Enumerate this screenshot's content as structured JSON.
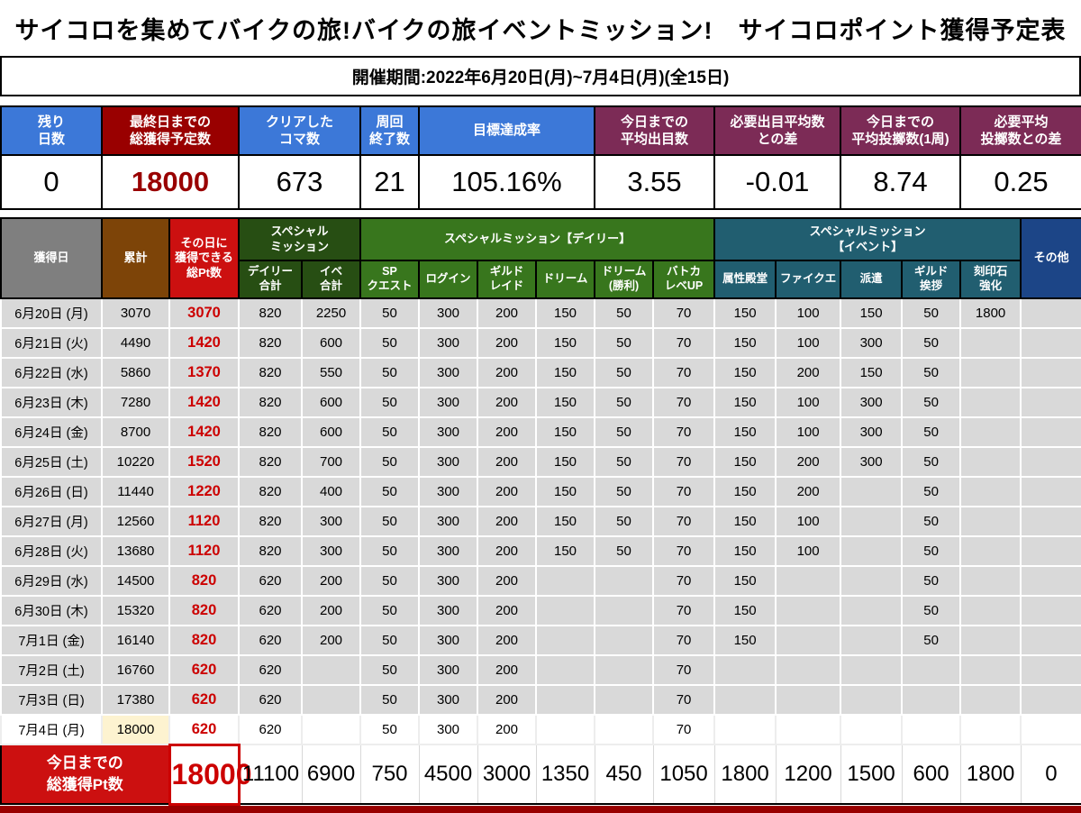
{
  "title": "サイコロを集めてバイクの旅!バイクの旅イベントミッション!　サイコロポイント獲得予定表",
  "period": "開催期間:2022年6月20日(月)~7月4日(月)(全15日)",
  "colors": {
    "stat_blue": "#3c78d8",
    "stat_dark_red": "#990000",
    "stat_maroon": "#7c2b56",
    "col_gray": "#7f7f7f",
    "col_brown": "#7d4408",
    "col_red": "#cc1010",
    "dark_green": "#274e13",
    "green": "#38761d",
    "teal": "#215e70",
    "navy": "#1c4587",
    "row_gray": "#d9d9d9",
    "highlight_cream": "#fdf3d0",
    "value_red": "#cc0000"
  },
  "stats": {
    "items": [
      {
        "label": "残り\n日数",
        "value": "0"
      },
      {
        "label": "最終日までの\n総獲得予定数",
        "value": "18000"
      },
      {
        "label": "クリアした\nコマ数",
        "value": "673"
      },
      {
        "label": "周回\n終了数",
        "value": "21"
      },
      {
        "label": "目標達成率",
        "value": "105.16%"
      },
      {
        "label": "今日までの\n平均出目数",
        "value": "3.55"
      },
      {
        "label": "必要出目平均数\nとの差",
        "value": "-0.01"
      },
      {
        "label": "今日までの\n平均投擲数(1周)",
        "value": "8.74"
      },
      {
        "label": "必要平均\n投擲数との差",
        "value": "0.25"
      }
    ]
  },
  "table": {
    "header": {
      "col_date": "獲得日",
      "col_cumulative": "累計",
      "col_day_total": "その日に\n獲得できる\n総Pt数",
      "group_special": "スペシャル\nミッション",
      "col_daily_sum": "デイリー\n合計",
      "col_event_sum": "イベ\n合計",
      "group_daily": "スペシャルミッション【デイリー】",
      "daily_cols": [
        "SP\nクエスト",
        "ログイン",
        "ギルド\nレイド",
        "ドリーム",
        "ドリーム\n(勝利)",
        "バトカ\nレベUP"
      ],
      "group_event": "スペシャルミッション\n【イベント】",
      "event_cols": [
        "属性殿堂",
        "ファイクエ",
        "派遣",
        "ギルド\n挨拶",
        "刻印石\n強化"
      ],
      "col_other": "その他"
    },
    "rows": [
      {
        "date": "6月20日 (月)",
        "cumulative": "3070",
        "day_total": "3070",
        "values": [
          "820",
          "2250",
          "50",
          "300",
          "200",
          "150",
          "50",
          "70",
          "150",
          "100",
          "150",
          "50",
          "1800",
          ""
        ]
      },
      {
        "date": "6月21日 (火)",
        "cumulative": "4490",
        "day_total": "1420",
        "values": [
          "820",
          "600",
          "50",
          "300",
          "200",
          "150",
          "50",
          "70",
          "150",
          "100",
          "300",
          "50",
          "",
          ""
        ]
      },
      {
        "date": "6月22日 (水)",
        "cumulative": "5860",
        "day_total": "1370",
        "values": [
          "820",
          "550",
          "50",
          "300",
          "200",
          "150",
          "50",
          "70",
          "150",
          "200",
          "150",
          "50",
          "",
          ""
        ]
      },
      {
        "date": "6月23日 (木)",
        "cumulative": "7280",
        "day_total": "1420",
        "values": [
          "820",
          "600",
          "50",
          "300",
          "200",
          "150",
          "50",
          "70",
          "150",
          "100",
          "300",
          "50",
          "",
          ""
        ]
      },
      {
        "date": "6月24日 (金)",
        "cumulative": "8700",
        "day_total": "1420",
        "values": [
          "820",
          "600",
          "50",
          "300",
          "200",
          "150",
          "50",
          "70",
          "150",
          "100",
          "300",
          "50",
          "",
          ""
        ]
      },
      {
        "date": "6月25日 (土)",
        "cumulative": "10220",
        "day_total": "1520",
        "values": [
          "820",
          "700",
          "50",
          "300",
          "200",
          "150",
          "50",
          "70",
          "150",
          "200",
          "300",
          "50",
          "",
          ""
        ]
      },
      {
        "date": "6月26日 (日)",
        "cumulative": "11440",
        "day_total": "1220",
        "values": [
          "820",
          "400",
          "50",
          "300",
          "200",
          "150",
          "50",
          "70",
          "150",
          "200",
          "",
          "50",
          "",
          ""
        ]
      },
      {
        "date": "6月27日 (月)",
        "cumulative": "12560",
        "day_total": "1120",
        "values": [
          "820",
          "300",
          "50",
          "300",
          "200",
          "150",
          "50",
          "70",
          "150",
          "100",
          "",
          "50",
          "",
          ""
        ]
      },
      {
        "date": "6月28日 (火)",
        "cumulative": "13680",
        "day_total": "1120",
        "values": [
          "820",
          "300",
          "50",
          "300",
          "200",
          "150",
          "50",
          "70",
          "150",
          "100",
          "",
          "50",
          "",
          ""
        ]
      },
      {
        "date": "6月29日 (水)",
        "cumulative": "14500",
        "day_total": "820",
        "values": [
          "620",
          "200",
          "50",
          "300",
          "200",
          "",
          "",
          "70",
          "150",
          "",
          "",
          "50",
          "",
          ""
        ]
      },
      {
        "date": "6月30日 (木)",
        "cumulative": "15320",
        "day_total": "820",
        "values": [
          "620",
          "200",
          "50",
          "300",
          "200",
          "",
          "",
          "70",
          "150",
          "",
          "",
          "50",
          "",
          ""
        ]
      },
      {
        "date": "7月1日 (金)",
        "cumulative": "16140",
        "day_total": "820",
        "values": [
          "620",
          "200",
          "50",
          "300",
          "200",
          "",
          "",
          "70",
          "150",
          "",
          "",
          "50",
          "",
          ""
        ]
      },
      {
        "date": "7月2日 (土)",
        "cumulative": "16760",
        "day_total": "620",
        "values": [
          "620",
          "",
          "50",
          "300",
          "200",
          "",
          "",
          "70",
          "",
          "",
          "",
          "",
          "",
          ""
        ]
      },
      {
        "date": "7月3日 (日)",
        "cumulative": "17380",
        "day_total": "620",
        "values": [
          "620",
          "",
          "50",
          "300",
          "200",
          "",
          "",
          "70",
          "",
          "",
          "",
          "",
          "",
          ""
        ]
      },
      {
        "date": "7月4日 (月)",
        "cumulative": "18000",
        "day_total": "620",
        "values": [
          "620",
          "",
          "50",
          "300",
          "200",
          "",
          "",
          "70",
          "",
          "",
          "",
          "",
          "",
          ""
        ]
      }
    ],
    "footer": {
      "label": "今日までの\n総獲得Pt数",
      "grand_total": "18000",
      "totals": [
        "11100",
        "6900",
        "750",
        "4500",
        "3000",
        "1350",
        "450",
        "1050",
        "1800",
        "1200",
        "1500",
        "600",
        "1800",
        "0"
      ]
    }
  }
}
